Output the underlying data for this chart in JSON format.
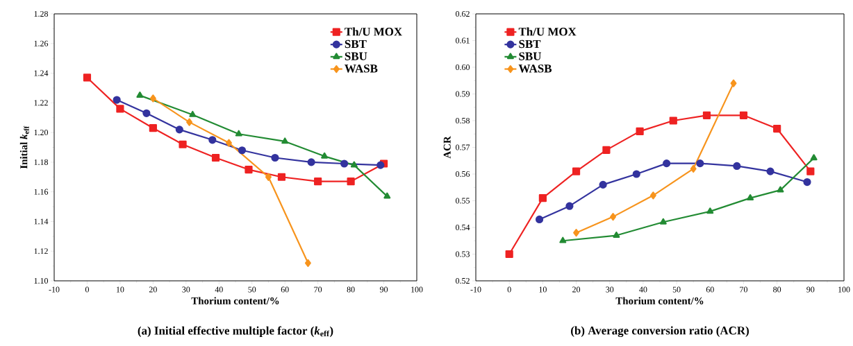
{
  "chart_data": [
    {
      "type": "line",
      "title": "(a) Initial effective multiple factor (*k*$_{eff}$)",
      "xlabel": "Thorium content/%",
      "ylabel": "Initial *k*$_{eff}$",
      "xlim": [
        -10,
        100
      ],
      "xticks": [
        -10,
        0,
        10,
        20,
        30,
        40,
        50,
        60,
        70,
        80,
        90,
        100
      ],
      "ylim": [
        1.1,
        1.28
      ],
      "yticks": [
        {
          "value": 1.1,
          "label": "1.10"
        },
        1.12,
        1.14,
        1.16,
        1.18,
        {
          "value": 1.2,
          "label": "1.20"
        },
        1.22,
        1.24,
        1.26,
        1.28
      ],
      "legend": "top right",
      "line_style": "solid",
      "series": [
        {
          "name": "Th/U MOX",
          "color": "#ee2222",
          "marker": "square",
          "x": [
            0,
            10,
            20,
            29,
            39,
            49,
            59,
            70,
            80,
            90
          ],
          "values": [
            1.237,
            1.216,
            1.203,
            1.192,
            1.183,
            1.175,
            1.17,
            1.167,
            1.167,
            1.179
          ]
        },
        {
          "name": "SBT",
          "color": "#33339e",
          "marker": "circle",
          "x": [
            9,
            18,
            28,
            38,
            47,
            57,
            68,
            78,
            89
          ],
          "values": [
            1.222,
            1.213,
            1.202,
            1.195,
            1.188,
            1.183,
            1.18,
            1.179,
            1.178
          ]
        },
        {
          "name": "SBU",
          "color": "#228b33",
          "marker": "triangle",
          "x": [
            16,
            32,
            46,
            60,
            72,
            81,
            91
          ],
          "values": [
            1.225,
            1.212,
            1.199,
            1.194,
            1.184,
            1.178,
            1.157
          ]
        },
        {
          "name": "WASB",
          "color": "#f7941d",
          "marker": "diamond",
          "x": [
            20,
            31,
            43,
            55,
            67
          ],
          "values": [
            1.223,
            1.207,
            1.193,
            1.17,
            1.112
          ]
        }
      ]
    },
    {
      "type": "line",
      "title": "(b) Average conversion ratio (ACR)",
      "xlabel": "Thorium content/%",
      "ylabel": "ACR",
      "xlim": [
        -10,
        100
      ],
      "xticks": [
        -10,
        0,
        10,
        20,
        30,
        40,
        50,
        60,
        70,
        80,
        90,
        100
      ],
      "ylim": [
        0.52,
        0.62
      ],
      "yticks": [
        0.52,
        0.53,
        0.54,
        0.55,
        0.56,
        0.57,
        0.58,
        0.59,
        {
          "value": 0.6,
          "label": "0.60"
        },
        0.61,
        0.62
      ],
      "legend": "top left",
      "line_style": "solid",
      "series": [
        {
          "name": "Th/U MOX",
          "color": "#ee2222",
          "marker": "square",
          "x": [
            0,
            10,
            20,
            29,
            39,
            49,
            59,
            70,
            80,
            90
          ],
          "values": [
            0.53,
            0.551,
            0.561,
            0.569,
            0.576,
            0.58,
            0.582,
            0.582,
            0.577,
            0.561
          ]
        },
        {
          "name": "SBT",
          "color": "#33339e",
          "marker": "circle",
          "x": [
            9,
            18,
            28,
            38,
            47,
            57,
            68,
            78,
            89
          ],
          "values": [
            0.543,
            0.548,
            0.556,
            0.56,
            0.564,
            0.564,
            0.563,
            0.561,
            0.557
          ]
        },
        {
          "name": "SBU",
          "color": "#228b33",
          "marker": "triangle",
          "x": [
            16,
            32,
            46,
            60,
            72,
            81,
            91
          ],
          "values": [
            0.535,
            0.537,
            0.542,
            0.546,
            0.551,
            0.554,
            0.566
          ]
        },
        {
          "name": "WASB",
          "color": "#f7941d",
          "marker": "diamond",
          "x": [
            20,
            31,
            43,
            55,
            67
          ],
          "values": [
            0.538,
            0.544,
            0.552,
            0.562,
            0.594
          ]
        }
      ]
    }
  ]
}
